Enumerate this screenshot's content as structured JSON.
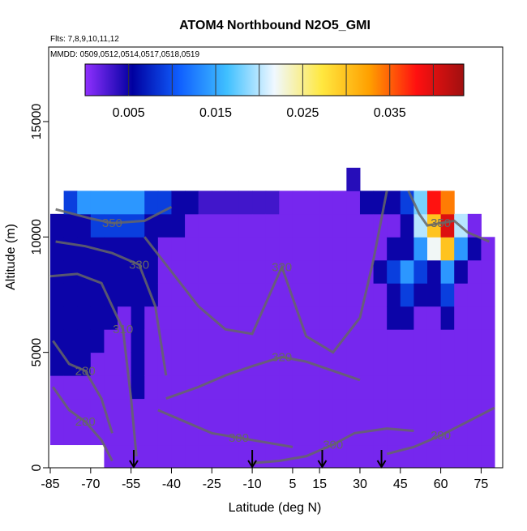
{
  "chart_data": {
    "type": "heatmap",
    "title": "ATOM4 Northbound N2O5_GMI",
    "subtitle": "Flts: 7,8,9,10,11,12",
    "annotation": "MMDD: 0509,0512,0514,0517,0518,0519",
    "x_label": "Latitude (deg N)",
    "y_label": "Altitude (m)",
    "xlim": [
      -85.6,
      83
    ],
    "ylim": [
      0,
      18230
    ],
    "xticks": [
      -85,
      -70,
      -55,
      -40,
      -25,
      -10,
      5,
      15,
      30,
      45,
      60,
      75
    ],
    "yticks": [
      0,
      5000,
      10000,
      15000
    ],
    "x_bins": [
      -85,
      -80,
      -75,
      -70,
      -65,
      -60,
      -55,
      -50,
      -45,
      -40,
      -35,
      -30,
      -25,
      -20,
      -15,
      -10,
      -5,
      0,
      5,
      10,
      15,
      20,
      25,
      30,
      35,
      40,
      45,
      50,
      55,
      60,
      65,
      70,
      75,
      80
    ],
    "y_bins": [
      0,
      1000,
      2000,
      3000,
      4000,
      5000,
      6000,
      7000,
      8000,
      9000,
      10000,
      11000,
      12000,
      13000
    ],
    "z_by_column": [
      [
        null,
        0.001,
        0.001,
        0.001,
        0.005,
        0.005,
        0.005,
        0.005,
        0.005,
        0.005,
        0.005,
        null,
        null
      ],
      [
        null,
        0.001,
        0.001,
        0.001,
        0.005,
        0.005,
        0.005,
        0.005,
        0.005,
        0.005,
        0.005,
        0.009,
        null
      ],
      [
        null,
        0.001,
        0.001,
        0.001,
        0.005,
        0.005,
        0.005,
        0.005,
        0.005,
        0.005,
        0.005,
        0.014,
        null
      ],
      [
        null,
        0.001,
        0.001,
        0.001,
        0.001,
        0.005,
        0.005,
        0.005,
        0.005,
        0.005,
        0.009,
        0.014,
        null
      ],
      [
        0.001,
        0.001,
        0.001,
        0.001,
        0.001,
        0.001,
        0.005,
        0.005,
        0.005,
        0.005,
        0.009,
        0.014,
        null
      ],
      [
        0.001,
        0.001,
        0.001,
        0.001,
        0.001,
        0.001,
        0.001,
        0.005,
        0.005,
        0.005,
        0.009,
        0.014,
        null
      ],
      [
        0.001,
        0.001,
        0.001,
        0.005,
        0.005,
        0.005,
        0.005,
        0.005,
        0.005,
        0.005,
        0.009,
        0.014,
        null
      ],
      [
        0.001,
        0.001,
        0.001,
        0.001,
        0.001,
        0.001,
        0.001,
        0.005,
        0.005,
        0.005,
        0.005,
        0.009,
        null
      ],
      [
        0.001,
        0.001,
        0.001,
        0.001,
        0.001,
        0.001,
        0.001,
        0.001,
        0.001,
        0.001,
        0.005,
        0.009,
        null
      ],
      [
        0.001,
        0.001,
        0.001,
        0.001,
        0.001,
        0.001,
        0.001,
        0.001,
        0.001,
        0.001,
        0.005,
        0.005,
        null
      ],
      [
        0.001,
        0.001,
        0.001,
        0.001,
        0.001,
        0.001,
        0.001,
        0.001,
        0.001,
        0.001,
        0.001,
        0.005,
        null
      ],
      [
        0.001,
        0.001,
        0.001,
        0.001,
        0.001,
        0.001,
        0.001,
        0.001,
        0.001,
        0.001,
        0.001,
        0.003,
        null
      ],
      [
        0.001,
        0.001,
        0.001,
        0.001,
        0.001,
        0.001,
        0.001,
        0.001,
        0.001,
        0.001,
        0.001,
        0.003,
        null
      ],
      [
        0.001,
        0.001,
        0.001,
        0.001,
        0.001,
        0.001,
        0.001,
        0.001,
        0.001,
        0.001,
        0.001,
        0.003,
        null
      ],
      [
        0.001,
        0.001,
        0.001,
        0.001,
        0.001,
        0.001,
        0.001,
        0.001,
        0.001,
        0.001,
        0.001,
        0.003,
        null
      ],
      [
        0.001,
        0.001,
        0.001,
        0.001,
        0.001,
        0.001,
        0.001,
        0.001,
        0.001,
        0.001,
        0.001,
        0.003,
        null
      ],
      [
        0.001,
        0.001,
        0.001,
        0.001,
        0.001,
        0.001,
        0.001,
        0.001,
        0.001,
        0.001,
        0.001,
        0.003,
        null
      ],
      [
        0.001,
        0.001,
        0.001,
        0.001,
        0.001,
        0.001,
        0.001,
        0.001,
        0.001,
        0.001,
        0.001,
        0.001,
        null
      ],
      [
        0.001,
        0.001,
        0.001,
        0.001,
        0.001,
        0.001,
        0.001,
        0.001,
        0.001,
        0.001,
        0.001,
        0.001,
        null
      ],
      [
        0.001,
        0.001,
        0.001,
        0.001,
        0.001,
        0.001,
        0.001,
        0.001,
        0.001,
        0.001,
        0.001,
        0.001,
        null
      ],
      [
        0.001,
        0.001,
        0.001,
        0.001,
        0.001,
        0.001,
        0.001,
        0.001,
        0.001,
        0.001,
        0.001,
        0.001,
        null
      ],
      [
        0.001,
        0.001,
        0.001,
        0.001,
        0.001,
        0.001,
        0.001,
        0.001,
        0.001,
        0.001,
        0.001,
        0.001,
        null
      ],
      [
        0.001,
        0.001,
        0.001,
        0.001,
        0.001,
        0.001,
        0.001,
        0.001,
        0.001,
        0.001,
        0.001,
        0.001,
        0.004
      ],
      [
        0.001,
        0.001,
        0.001,
        0.001,
        0.001,
        0.001,
        0.001,
        0.001,
        0.001,
        0.001,
        0.001,
        0.005,
        null
      ],
      [
        0.001,
        0.001,
        0.001,
        0.001,
        0.001,
        0.001,
        0.001,
        0.001,
        0.005,
        0.001,
        0.001,
        0.005,
        null
      ],
      [
        0.001,
        0.001,
        0.001,
        0.001,
        0.001,
        0.001,
        0.005,
        0.005,
        0.009,
        0.005,
        0.001,
        0.005,
        null
      ],
      [
        0.001,
        0.001,
        0.001,
        0.001,
        0.001,
        0.001,
        0.005,
        0.009,
        0.014,
        0.005,
        0.005,
        0.009,
        null
      ],
      [
        0.001,
        0.001,
        0.001,
        0.001,
        0.001,
        0.001,
        0.001,
        0.005,
        0.009,
        0.014,
        0.02,
        0.018,
        null
      ],
      [
        0.001,
        0.001,
        0.001,
        0.001,
        0.001,
        0.001,
        0.001,
        0.005,
        0.005,
        0.022,
        0.03,
        0.038,
        null
      ],
      [
        0.001,
        0.001,
        0.001,
        0.001,
        0.001,
        0.001,
        0.005,
        0.009,
        0.014,
        0.03,
        0.04,
        0.034,
        null
      ],
      [
        0.001,
        0.001,
        0.001,
        0.001,
        0.001,
        0.001,
        0.001,
        0.001,
        0.005,
        0.014,
        0.02,
        null,
        null
      ],
      [
        0.001,
        0.001,
        0.001,
        0.001,
        0.001,
        0.001,
        0.001,
        0.001,
        0.001,
        0.005,
        0.001,
        null,
        null
      ],
      [
        0.001,
        0.001,
        0.001,
        0.001,
        0.001,
        0.001,
        0.001,
        0.001,
        0.001,
        0.001,
        null,
        null,
        null
      ]
    ],
    "clim": [
      0,
      0.0435
    ],
    "cticks": [
      0.005,
      0.015,
      0.025,
      0.035
    ],
    "colorscale": [
      "#9030ff",
      "#0000a0",
      "#1060ff",
      "#40c0ff",
      "#f0f8ff",
      "#ffe840",
      "#ffa000",
      "#ff1010",
      "#a01010"
    ],
    "contour_color": "#666666",
    "contours": [
      {
        "label": "350",
        "lat": [
          -83,
          -70,
          -62,
          -50,
          -40
        ],
        "alt": [
          11200,
          10800,
          10600,
          10700,
          11300
        ]
      },
      {
        "label": "330",
        "lat": [
          -83,
          -72,
          -62,
          -52,
          -46,
          -42
        ],
        "alt": [
          9800,
          9600,
          9300,
          8800,
          7000,
          4000
        ]
      },
      {
        "label": "310",
        "lat": [
          -85,
          -75,
          -66,
          -58,
          -55,
          -53
        ],
        "alt": [
          8300,
          8400,
          8000,
          6000,
          3000,
          500
        ]
      },
      {
        "label": "280",
        "lat": [
          -84,
          -78,
          -72,
          -66,
          -62
        ],
        "alt": [
          5500,
          4500,
          4200,
          3000,
          1500
        ]
      },
      {
        "label": "280",
        "lat": [
          -84,
          -78,
          -72,
          -66,
          -62
        ],
        "alt": [
          3500,
          2500,
          2000,
          1200,
          300
        ]
      },
      {
        "label": "320",
        "lat": [
          -50,
          -40,
          -30,
          -20,
          -10,
          1,
          10,
          20,
          30,
          35,
          40
        ],
        "alt": [
          10000,
          8500,
          7000,
          6000,
          5800,
          8700,
          5700,
          5000,
          6500,
          9000,
          12000
        ]
      },
      {
        "label": "320",
        "lat": [
          -42,
          -30,
          -20,
          -10,
          1,
          10,
          20,
          30
        ],
        "alt": [
          3000,
          3500,
          4000,
          4400,
          4800,
          4600,
          4200,
          3800
        ]
      },
      {
        "label": "300",
        "lat": [
          -45,
          -35,
          -25,
          -15,
          -5,
          5
        ],
        "alt": [
          2500,
          2000,
          1500,
          1300,
          1100,
          900
        ]
      },
      {
        "label": "300",
        "lat": [
          -10,
          0,
          10,
          20,
          28,
          40,
          50
        ],
        "alt": [
          200,
          300,
          500,
          1000,
          1500,
          1700,
          1600
        ]
      },
      {
        "label": "290",
        "lat": [
          40,
          50,
          60,
          70,
          80
        ],
        "alt": [
          600,
          900,
          1400,
          2000,
          2600
        ]
      },
      {
        "label": "350",
        "lat": [
          48,
          52,
          55,
          60,
          65,
          70,
          78
        ],
        "alt": [
          12000,
          11000,
          10500,
          10600,
          10700,
          10200,
          9800
        ]
      }
    ],
    "arrows": [
      -54,
      -10,
      16,
      38
    ]
  }
}
